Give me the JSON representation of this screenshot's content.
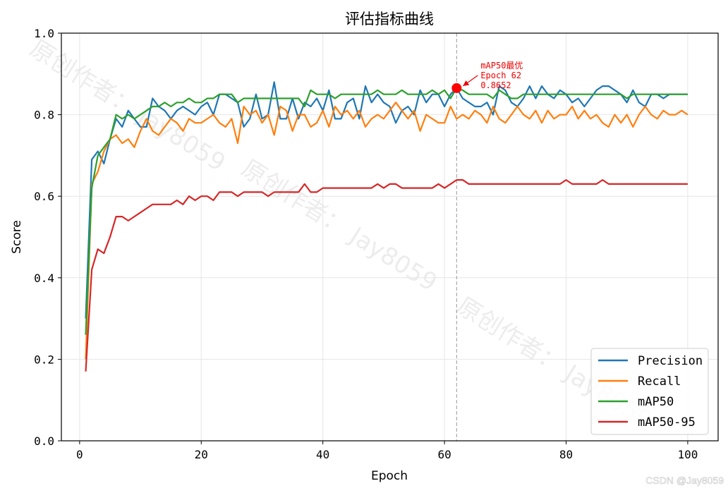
{
  "chart_data": {
    "type": "line",
    "title": "评估指标曲线",
    "xlabel": "Epoch",
    "ylabel": "Score",
    "xlim": [
      -3,
      105
    ],
    "ylim": [
      0.0,
      1.0
    ],
    "xticks": [
      0,
      20,
      40,
      60,
      80,
      100
    ],
    "xtick_labels": [
      "0",
      "20",
      "40",
      "60",
      "80",
      "100"
    ],
    "yticks": [
      0.0,
      0.2,
      0.4,
      0.6,
      0.8,
      1.0
    ],
    "ytick_labels": [
      "0.0",
      "0.2",
      "0.4",
      "0.6",
      "0.8",
      "1.0"
    ],
    "grid": true,
    "legend_position": "lower-right",
    "x": [
      1,
      2,
      3,
      4,
      5,
      6,
      7,
      8,
      9,
      10,
      11,
      12,
      13,
      14,
      15,
      16,
      17,
      18,
      19,
      20,
      21,
      22,
      23,
      24,
      25,
      26,
      27,
      28,
      29,
      30,
      31,
      32,
      33,
      34,
      35,
      36,
      37,
      38,
      39,
      40,
      41,
      42,
      43,
      44,
      45,
      46,
      47,
      48,
      49,
      50,
      51,
      52,
      53,
      54,
      55,
      56,
      57,
      58,
      59,
      60,
      61,
      62,
      63,
      64,
      65,
      66,
      67,
      68,
      69,
      70,
      71,
      72,
      73,
      74,
      75,
      76,
      77,
      78,
      79,
      80,
      81,
      82,
      83,
      84,
      85,
      86,
      87,
      88,
      89,
      90,
      91,
      92,
      93,
      94,
      95,
      96,
      97,
      98,
      99,
      100
    ],
    "series": [
      {
        "name": "Precision",
        "color": "#1f77b4",
        "values": [
          0.3,
          0.69,
          0.71,
          0.68,
          0.74,
          0.79,
          0.77,
          0.81,
          0.79,
          0.77,
          0.77,
          0.84,
          0.82,
          0.81,
          0.79,
          0.81,
          0.82,
          0.81,
          0.8,
          0.82,
          0.83,
          0.8,
          0.85,
          0.85,
          0.84,
          0.83,
          0.77,
          0.79,
          0.85,
          0.79,
          0.8,
          0.88,
          0.79,
          0.79,
          0.84,
          0.79,
          0.83,
          0.82,
          0.84,
          0.81,
          0.86,
          0.79,
          0.79,
          0.83,
          0.84,
          0.79,
          0.87,
          0.83,
          0.85,
          0.83,
          0.82,
          0.78,
          0.81,
          0.82,
          0.8,
          0.86,
          0.83,
          0.85,
          0.85,
          0.82,
          0.85,
          0.8652,
          0.84,
          0.83,
          0.82,
          0.82,
          0.83,
          0.8,
          0.87,
          0.86,
          0.83,
          0.82,
          0.84,
          0.87,
          0.84,
          0.87,
          0.85,
          0.84,
          0.86,
          0.85,
          0.83,
          0.84,
          0.82,
          0.84,
          0.86,
          0.87,
          0.87,
          0.86,
          0.85,
          0.83,
          0.86,
          0.83,
          0.82,
          0.85,
          0.85,
          0.84,
          0.85,
          0.85,
          0.85,
          0.85
        ]
      },
      {
        "name": "Recall",
        "color": "#ff7f0e",
        "values": [
          0.2,
          0.63,
          0.66,
          0.71,
          0.74,
          0.75,
          0.73,
          0.74,
          0.72,
          0.76,
          0.79,
          0.76,
          0.75,
          0.77,
          0.79,
          0.78,
          0.76,
          0.79,
          0.78,
          0.78,
          0.79,
          0.8,
          0.78,
          0.77,
          0.79,
          0.73,
          0.82,
          0.8,
          0.81,
          0.78,
          0.8,
          0.75,
          0.82,
          0.81,
          0.76,
          0.8,
          0.8,
          0.77,
          0.78,
          0.81,
          0.77,
          0.82,
          0.8,
          0.81,
          0.79,
          0.81,
          0.77,
          0.79,
          0.8,
          0.79,
          0.81,
          0.83,
          0.81,
          0.79,
          0.81,
          0.76,
          0.8,
          0.79,
          0.78,
          0.78,
          0.82,
          0.79,
          0.8,
          0.79,
          0.81,
          0.8,
          0.78,
          0.82,
          0.79,
          0.78,
          0.8,
          0.82,
          0.8,
          0.79,
          0.81,
          0.78,
          0.81,
          0.79,
          0.8,
          0.8,
          0.82,
          0.79,
          0.81,
          0.79,
          0.8,
          0.78,
          0.77,
          0.8,
          0.78,
          0.8,
          0.77,
          0.8,
          0.82,
          0.8,
          0.79,
          0.81,
          0.8,
          0.8,
          0.81,
          0.8
        ]
      },
      {
        "name": "mAP50",
        "color": "#2ca02c",
        "values": [
          0.26,
          0.62,
          0.7,
          0.72,
          0.74,
          0.8,
          0.79,
          0.8,
          0.79,
          0.8,
          0.81,
          0.82,
          0.82,
          0.83,
          0.82,
          0.83,
          0.83,
          0.84,
          0.83,
          0.83,
          0.84,
          0.84,
          0.85,
          0.85,
          0.85,
          0.83,
          0.84,
          0.84,
          0.84,
          0.84,
          0.84,
          0.84,
          0.84,
          0.84,
          0.84,
          0.84,
          0.82,
          0.86,
          0.85,
          0.85,
          0.85,
          0.84,
          0.85,
          0.85,
          0.85,
          0.85,
          0.85,
          0.85,
          0.86,
          0.85,
          0.85,
          0.85,
          0.86,
          0.85,
          0.85,
          0.85,
          0.85,
          0.86,
          0.85,
          0.86,
          0.84,
          0.8652,
          0.86,
          0.85,
          0.85,
          0.85,
          0.85,
          0.84,
          0.86,
          0.85,
          0.84,
          0.84,
          0.85,
          0.85,
          0.85,
          0.85,
          0.85,
          0.85,
          0.85,
          0.85,
          0.85,
          0.85,
          0.85,
          0.85,
          0.85,
          0.85,
          0.85,
          0.85,
          0.85,
          0.84,
          0.85,
          0.85,
          0.85,
          0.85,
          0.85,
          0.85,
          0.85,
          0.85,
          0.85,
          0.85
        ]
      },
      {
        "name": "mAP50-95",
        "color": "#d62728",
        "values": [
          0.17,
          0.42,
          0.47,
          0.46,
          0.5,
          0.55,
          0.55,
          0.54,
          0.55,
          0.56,
          0.57,
          0.58,
          0.58,
          0.58,
          0.58,
          0.59,
          0.58,
          0.6,
          0.59,
          0.6,
          0.6,
          0.59,
          0.61,
          0.61,
          0.61,
          0.6,
          0.61,
          0.61,
          0.61,
          0.61,
          0.6,
          0.61,
          0.61,
          0.61,
          0.61,
          0.61,
          0.63,
          0.61,
          0.61,
          0.62,
          0.62,
          0.62,
          0.62,
          0.62,
          0.62,
          0.62,
          0.62,
          0.62,
          0.63,
          0.62,
          0.63,
          0.63,
          0.62,
          0.62,
          0.62,
          0.62,
          0.62,
          0.62,
          0.63,
          0.62,
          0.63,
          0.64,
          0.64,
          0.63,
          0.63,
          0.63,
          0.63,
          0.63,
          0.63,
          0.63,
          0.63,
          0.63,
          0.63,
          0.63,
          0.63,
          0.63,
          0.63,
          0.63,
          0.63,
          0.64,
          0.63,
          0.63,
          0.63,
          0.63,
          0.63,
          0.64,
          0.63,
          0.63,
          0.63,
          0.63,
          0.63,
          0.63,
          0.63,
          0.63,
          0.63,
          0.63,
          0.63,
          0.63,
          0.63,
          0.63
        ]
      }
    ],
    "best_marker": {
      "x": 62,
      "y": 0.8652,
      "color": "#ff0000",
      "line1": "mAP50最优",
      "line2": "Epoch 62",
      "line3": "0.8652"
    }
  },
  "watermark": "原创作者： Jay8059",
  "credit": "CSDN @Jay8059"
}
